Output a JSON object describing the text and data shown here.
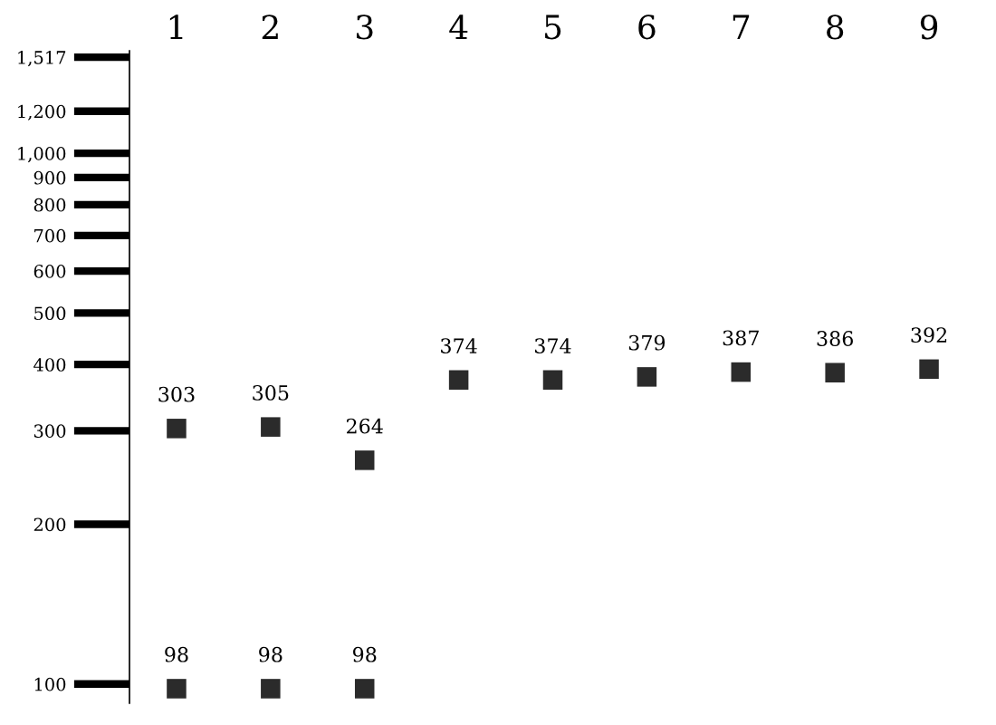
{
  "chart_data": {
    "type": "scatter",
    "categories": [
      "1",
      "2",
      "3",
      "4",
      "5",
      "6",
      "7",
      "8",
      "9"
    ],
    "series": [
      {
        "color": "#2b2b2b",
        "values": [
          303,
          305,
          264,
          374,
          374,
          379,
          387,
          386,
          392
        ]
      },
      {
        "color": "#2b2b2b",
        "values": [
          98,
          98,
          98,
          null,
          null,
          null,
          null,
          null,
          null
        ]
      }
    ],
    "marker": "square",
    "log": "y",
    "ylim": [
      92,
      1560
    ],
    "yticks": [
      100,
      200,
      300,
      400,
      500,
      600,
      700,
      800,
      900,
      {
        "value": 1000,
        "label": "1,000"
      },
      {
        "value": 1200,
        "label": "1,200"
      },
      {
        "value": 1517,
        "label": "1,517"
      }
    ],
    "data_labels": true,
    "grid": false
  }
}
